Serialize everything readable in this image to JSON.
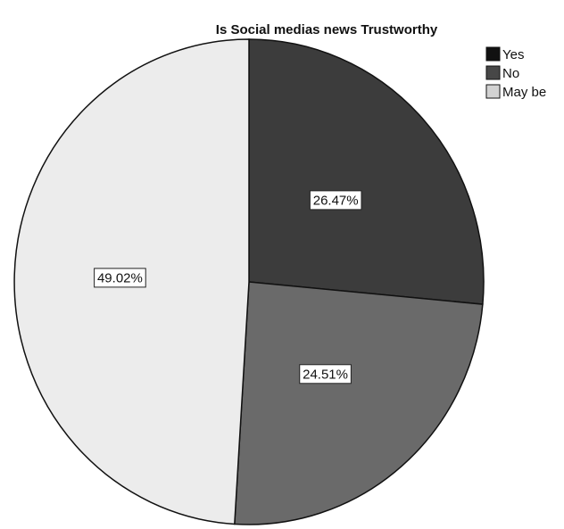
{
  "chart_data": {
    "type": "pie",
    "title": "Is Social medias news Trustworthy",
    "categories": [
      "Yes",
      "No",
      "May be"
    ],
    "values": [
      26.47,
      24.51,
      49.02
    ],
    "data_labels": [
      "26.47%",
      "24.51%",
      "49.02%"
    ],
    "colors": [
      "#3c3c3c",
      "#6a6a6a",
      "#ececec"
    ],
    "legend_swatch_colors": [
      "#111111",
      "#474747",
      "#d2d2d2"
    ],
    "legend_position": "top-right",
    "start_angle": "12 o'clock",
    "direction": "clockwise"
  }
}
